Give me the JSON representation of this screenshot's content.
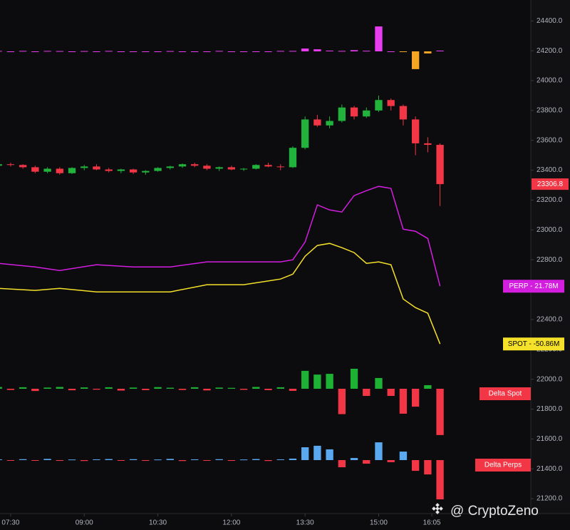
{
  "chart_data": {
    "type": "candlestick",
    "x": [
      435,
      450,
      465,
      480,
      495,
      510,
      525,
      540,
      555,
      570,
      585,
      600,
      615,
      630,
      645,
      660,
      675,
      690,
      705,
      720,
      735,
      750,
      765,
      780,
      795,
      810,
      825,
      840,
      855,
      870,
      885,
      900,
      915,
      930,
      945,
      960,
      975
    ],
    "open": [
      23430,
      23440,
      23435,
      23420,
      23390,
      23410,
      23380,
      23415,
      23425,
      23405,
      23395,
      23405,
      23385,
      23395,
      23415,
      23425,
      23440,
      23430,
      23410,
      23420,
      23405,
      23410,
      23435,
      23425,
      23420,
      23550,
      23740,
      23700,
      23730,
      23820,
      23760,
      23800,
      23870,
      23830,
      23740,
      23580,
      23570
    ],
    "high": [
      23445,
      23450,
      23440,
      23430,
      23420,
      23420,
      23420,
      23435,
      23440,
      23415,
      23410,
      23410,
      23400,
      23420,
      23430,
      23445,
      23450,
      23440,
      23425,
      23430,
      23415,
      23440,
      23450,
      23440,
      23560,
      23760,
      23770,
      23760,
      23840,
      23830,
      23820,
      23900,
      23880,
      23840,
      23760,
      23620,
      23580
    ],
    "low": [
      23420,
      23425,
      23410,
      23380,
      23380,
      23370,
      23375,
      23400,
      23400,
      23385,
      23380,
      23375,
      23370,
      23390,
      23405,
      23415,
      23420,
      23400,
      23395,
      23400,
      23395,
      23405,
      23420,
      23400,
      23415,
      23540,
      23690,
      23680,
      23720,
      23740,
      23750,
      23790,
      23800,
      23700,
      23500,
      23520,
      23160
    ],
    "close": [
      23440,
      23435,
      23420,
      23390,
      23410,
      23380,
      23415,
      23425,
      23405,
      23395,
      23405,
      23385,
      23395,
      23415,
      23425,
      23440,
      23430,
      23410,
      23420,
      23405,
      23410,
      23435,
      23425,
      23420,
      23550,
      23740,
      23700,
      23730,
      23820,
      23760,
      23800,
      23870,
      23830,
      23740,
      23580,
      23570,
      23306.8
    ],
    "up_color": "#22b33c",
    "down_color": "#f23645",
    "xlim": [
      437,
      1086
    ],
    "xticks": [
      {
        "value": 450,
        "label": "07:30"
      },
      {
        "value": 540,
        "label": "09:00"
      },
      {
        "value": 630,
        "label": "10:30"
      },
      {
        "value": 720,
        "label": "12:00"
      },
      {
        "value": 810,
        "label": "13:30"
      },
      {
        "value": 900,
        "label": "15:00"
      },
      {
        "value": 965,
        "label": "16:05"
      }
    ],
    "ylim": [
      21100,
      24540
    ],
    "yticks": [
      {
        "value": 24400,
        "label": "24400.0"
      },
      {
        "value": 24200,
        "label": "24200.0"
      },
      {
        "value": 24000,
        "label": "24000.0"
      },
      {
        "value": 23800,
        "label": "23800.0"
      },
      {
        "value": 23600,
        "label": "23600.0"
      },
      {
        "value": 23400,
        "label": "23400.0"
      },
      {
        "value": 23200,
        "label": "23200.0"
      },
      {
        "value": 23000,
        "label": "23000.0"
      },
      {
        "value": 22800,
        "label": "22800.0"
      },
      {
        "value": 22600,
        "label": "22600.0"
      },
      {
        "value": 22400,
        "label": "22400.0"
      },
      {
        "value": 22200,
        "label": "22200.0"
      },
      {
        "value": 22000,
        "label": "22000.0"
      },
      {
        "value": 21800,
        "label": "21800.0"
      },
      {
        "value": 21600,
        "label": "21600.0"
      },
      {
        "value": 21400,
        "label": "21400.0"
      },
      {
        "value": 21200,
        "label": "21200.0"
      }
    ],
    "overlays": [
      {
        "label": "PERP - 21.78M",
        "color": "#d31ee0",
        "text_color": "#ffffff",
        "x": [
          435,
          480,
          510,
          555,
          600,
          645,
          690,
          735,
          780,
          795,
          810,
          825,
          840,
          855,
          870,
          885,
          900,
          915,
          930,
          945,
          960,
          975
        ],
        "values": [
          22776,
          22752,
          22728,
          22767,
          22752,
          22752,
          22786,
          22786,
          22786,
          22800,
          22919,
          23168,
          23134,
          23120,
          23230,
          23263,
          23292,
          23278,
          23005,
          22991,
          22943,
          22623
        ]
      },
      {
        "label": "SPOT - -50.86M",
        "color": "#f5e12a",
        "text_color": "#000000",
        "x": [
          435,
          480,
          510,
          555,
          600,
          645,
          690,
          735,
          780,
          795,
          810,
          825,
          840,
          855,
          870,
          885,
          900,
          915,
          930,
          945,
          960,
          975
        ],
        "values": [
          22609,
          22595,
          22609,
          22585,
          22585,
          22585,
          22633,
          22633,
          22671,
          22704,
          22824,
          22896,
          22910,
          22881,
          22848,
          22776,
          22786,
          22767,
          22537,
          22480,
          22442,
          22236
        ]
      }
    ],
    "histograms": [
      {
        "up_color": "#e83cf0",
        "down_color": "#f5a623",
        "values": [
          3,
          0,
          3,
          0,
          3,
          2,
          0,
          2,
          0,
          3,
          0,
          0,
          0,
          0,
          2,
          0,
          0,
          0,
          3,
          0,
          0,
          0,
          0,
          3,
          3,
          19,
          14,
          5,
          3,
          8,
          4,
          167,
          0,
          -3,
          -119,
          -14,
          5
        ]
      },
      {
        "name": "Delta Spot",
        "up_color": "#1db233",
        "down_color": "#f23645",
        "values": [
          12,
          -8,
          10,
          -15,
          8,
          12,
          -10,
          9,
          -6,
          10,
          -12,
          8,
          -9,
          11,
          7,
          -8,
          10,
          -11,
          8,
          6,
          -7,
          12,
          -9,
          10,
          -14,
          120,
          95,
          100,
          -170,
          134,
          -48,
          72,
          -48,
          -167,
          -120,
          24,
          -310
        ]
      },
      {
        "name": "Delta Perps",
        "up_color": "#5aa9f0",
        "down_color": "#f23645",
        "values": [
          5,
          -4,
          6,
          -3,
          8,
          -5,
          4,
          -6,
          5,
          7,
          -4,
          6,
          -5,
          4,
          8,
          -6,
          5,
          -4,
          6,
          -5,
          4,
          7,
          -6,
          5,
          10,
          86,
          96,
          72,
          -48,
          14,
          -24,
          119,
          -14,
          57,
          -72,
          -96,
          -263
        ]
      }
    ],
    "watermark": "@ CryptoZeno"
  }
}
